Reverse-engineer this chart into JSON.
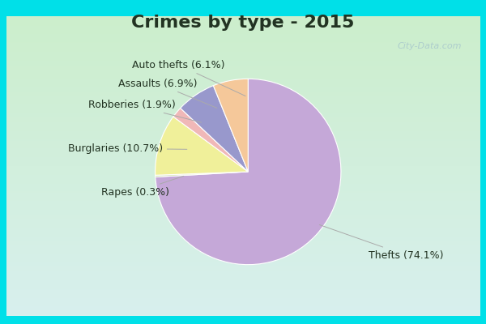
{
  "title": "Crimes by type - 2015",
  "slices": [
    {
      "label": "Thefts (74.1%)",
      "pct": 74.1,
      "color": "#c5a8d8"
    },
    {
      "label": "Rapes (0.3%)",
      "pct": 0.3,
      "color": "#c8dca8"
    },
    {
      "label": "Burglaries (10.7%)",
      "pct": 10.7,
      "color": "#f0f09a"
    },
    {
      "label": "Robberies (1.9%)",
      "pct": 1.9,
      "color": "#f0b8b8"
    },
    {
      "label": "Assaults (6.9%)",
      "pct": 6.9,
      "color": "#9898cc"
    },
    {
      "label": "Auto thefts (6.1%)",
      "pct": 6.1,
      "color": "#f5c89a"
    }
  ],
  "startangle": 90,
  "border_color": "#00e0e8",
  "bg_color_top": "#c8ecc8",
  "bg_color_bottom": "#d8eef0",
  "title_color": "#223322",
  "title_fontsize": 16,
  "label_fontsize": 9,
  "watermark": "City-Data.com",
  "watermark_color": "#a8c8cc"
}
